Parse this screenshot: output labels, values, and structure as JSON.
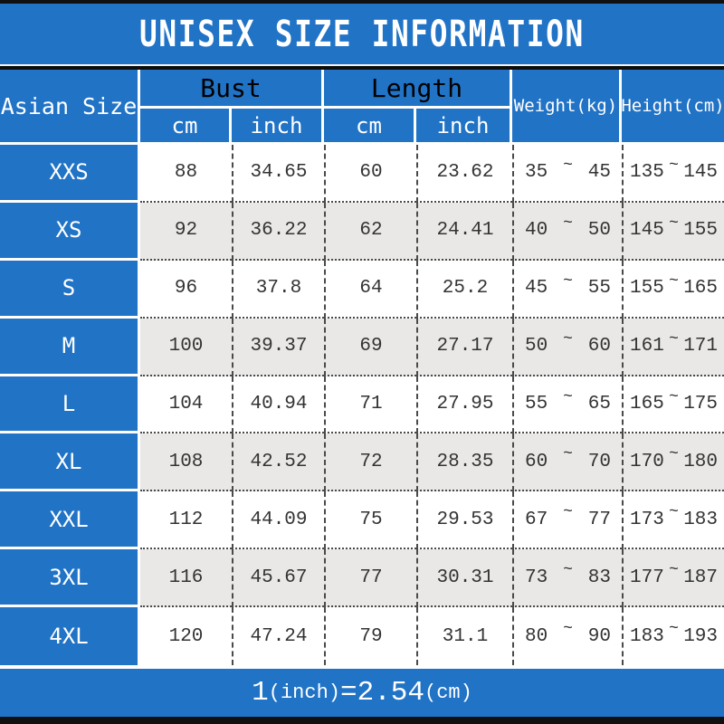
{
  "chart_data": {
    "type": "table",
    "title": "UNISEX SIZE INFORMATION",
    "header": {
      "size_col": "Asian Size",
      "bust_group": "Bust",
      "length_group": "Length",
      "bust_cm": "cm",
      "bust_inch": "inch",
      "length_cm": "cm",
      "length_inch": "inch",
      "weight_col": "Weight(kg)",
      "height_col": "Height(cm)"
    },
    "rows": [
      {
        "size": "XXS",
        "bust_cm": "88",
        "bust_inch": "34.65",
        "length_cm": "60",
        "length_inch": "23.62",
        "weight_min": "35",
        "weight_max": "45",
        "height_min": "135",
        "height_max": "145"
      },
      {
        "size": "XS",
        "bust_cm": "92",
        "bust_inch": "36.22",
        "length_cm": "62",
        "length_inch": "24.41",
        "weight_min": "40",
        "weight_max": "50",
        "height_min": "145",
        "height_max": "155"
      },
      {
        "size": "S",
        "bust_cm": "96",
        "bust_inch": "37.8",
        "length_cm": "64",
        "length_inch": "25.2",
        "weight_min": "45",
        "weight_max": "55",
        "height_min": "155",
        "height_max": "165"
      },
      {
        "size": "M",
        "bust_cm": "100",
        "bust_inch": "39.37",
        "length_cm": "69",
        "length_inch": "27.17",
        "weight_min": "50",
        "weight_max": "60",
        "height_min": "161",
        "height_max": "171"
      },
      {
        "size": "L",
        "bust_cm": "104",
        "bust_inch": "40.94",
        "length_cm": "71",
        "length_inch": "27.95",
        "weight_min": "55",
        "weight_max": "65",
        "height_min": "165",
        "height_max": "175"
      },
      {
        "size": "XL",
        "bust_cm": "108",
        "bust_inch": "42.52",
        "length_cm": "72",
        "length_inch": "28.35",
        "weight_min": "60",
        "weight_max": "70",
        "height_min": "170",
        "height_max": "180"
      },
      {
        "size": "XXL",
        "bust_cm": "112",
        "bust_inch": "44.09",
        "length_cm": "75",
        "length_inch": "29.53",
        "weight_min": "67",
        "weight_max": "77",
        "height_min": "173",
        "height_max": "183"
      },
      {
        "size": "3XL",
        "bust_cm": "116",
        "bust_inch": "45.67",
        "length_cm": "77",
        "length_inch": "30.31",
        "weight_min": "73",
        "weight_max": "83",
        "height_min": "177",
        "height_max": "187"
      },
      {
        "size": "4XL",
        "bust_cm": "120",
        "bust_inch": "47.24",
        "length_cm": "79",
        "length_inch": "31.1",
        "weight_min": "80",
        "weight_max": "90",
        "height_min": "183",
        "height_max": "193"
      }
    ],
    "footer": {
      "num1": "1",
      "unit1": "(inch)",
      "eq": "=",
      "num2": "2.54",
      "unit2": "(cm)"
    },
    "colors": {
      "accent_blue": "#2173c6",
      "row_alt_gray": "#e9e8e6",
      "bar_black": "#101010"
    }
  },
  "ui": {
    "tilde": "~"
  }
}
